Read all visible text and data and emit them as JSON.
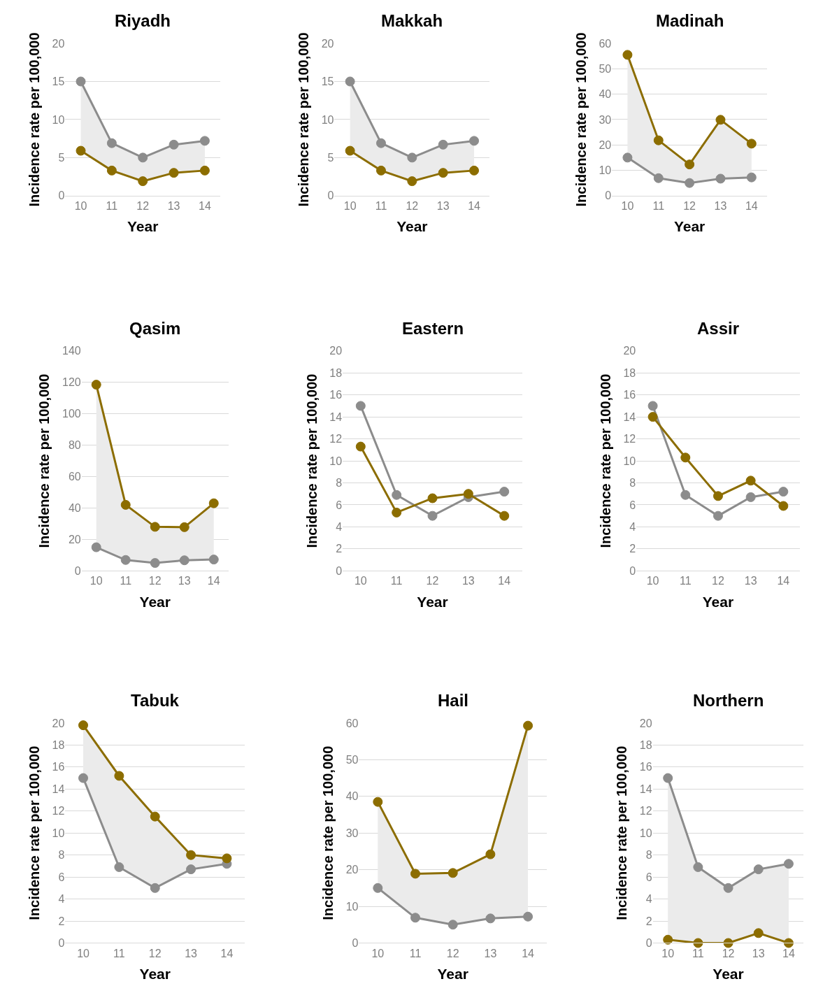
{
  "chart_data": [
    {
      "type": "line",
      "title": "Riyadh",
      "xlabel": "Year",
      "ylabel": "Incidence rate per 100,000",
      "categories": [
        "10",
        "11",
        "12",
        "13",
        "14"
      ],
      "ylim": [
        0,
        20
      ],
      "yticks": [
        0,
        5,
        10,
        15,
        20
      ],
      "grid": "y",
      "marker": "circle",
      "series": [
        {
          "color": "#8c8c8c",
          "values": [
            15,
            6.9,
            5.0,
            6.7,
            7.2
          ]
        },
        {
          "color": "#8c6d00",
          "values": [
            5.9,
            3.3,
            1.9,
            3.0,
            3.3
          ],
          "lower": [
            5.9,
            3.3,
            1.9,
            3.0,
            3.3
          ],
          "upper": [
            15,
            6.9,
            5.0,
            6.7,
            7.2
          ]
        }
      ]
    },
    {
      "type": "line",
      "title": "Makkah",
      "xlabel": "Year",
      "ylabel": "Incidence rate per 100,000",
      "categories": [
        "10",
        "11",
        "12",
        "13",
        "14"
      ],
      "ylim": [
        0,
        20
      ],
      "yticks": [
        0,
        5,
        10,
        15,
        20
      ],
      "grid": "y",
      "marker": "circle",
      "series": [
        {
          "color": "#8c8c8c",
          "values": [
            15,
            6.9,
            5.0,
            6.7,
            7.2
          ]
        },
        {
          "color": "#8c6d00",
          "values": [
            5.9,
            3.3,
            1.9,
            3.0,
            3.3
          ],
          "lower": [
            5.9,
            3.3,
            1.9,
            3.0,
            3.3
          ],
          "upper": [
            15,
            6.9,
            5.0,
            6.7,
            7.2
          ]
        }
      ]
    },
    {
      "type": "line",
      "title": "Madinah",
      "xlabel": "Year",
      "ylabel": "Incidence rate per 100,000",
      "categories": [
        "10",
        "11",
        "12",
        "13",
        "14"
      ],
      "ylim": [
        0,
        60
      ],
      "yticks": [
        0,
        10,
        20,
        30,
        40,
        50,
        60
      ],
      "grid": "y",
      "marker": "circle",
      "series": [
        {
          "color": "#8c8c8c",
          "values": [
            15,
            6.9,
            5.0,
            6.7,
            7.2
          ]
        },
        {
          "color": "#8c6d00",
          "values": [
            55.5,
            21.8,
            12.3,
            29.9,
            20.5
          ],
          "lower": [
            15,
            6.9,
            5.0,
            6.7,
            7.2
          ],
          "upper": [
            55.5,
            21.8,
            12.3,
            29.9,
            20.5
          ]
        }
      ]
    },
    {
      "type": "line",
      "title": "Qasim",
      "xlabel": "Year",
      "ylabel": "Incidence rate per 100,000",
      "categories": [
        "10",
        "11",
        "12",
        "13",
        "14"
      ],
      "ylim": [
        0,
        140
      ],
      "yticks": [
        0,
        20,
        40,
        60,
        80,
        100,
        120,
        140
      ],
      "grid": "y",
      "marker": "circle",
      "series": [
        {
          "color": "#8c8c8c",
          "values": [
            15,
            6.9,
            5.0,
            6.7,
            7.2
          ]
        },
        {
          "color": "#8c6d00",
          "values": [
            118.5,
            42,
            28,
            27.8,
            43
          ],
          "lower": [
            15,
            6.9,
            5.0,
            6.7,
            7.2
          ],
          "upper": [
            118.5,
            42,
            28,
            27.8,
            43
          ]
        }
      ]
    },
    {
      "type": "line",
      "title": "Eastern",
      "xlabel": "Year",
      "ylabel": "Incidence rate per 100,000",
      "categories": [
        "10",
        "11",
        "12",
        "13",
        "14"
      ],
      "ylim": [
        0,
        20
      ],
      "yticks": [
        0,
        2,
        4,
        6,
        8,
        10,
        12,
        14,
        16,
        18,
        20
      ],
      "grid": "y",
      "marker": "circle",
      "series": [
        {
          "color": "#8c8c8c",
          "values": [
            15,
            6.9,
            5.0,
            6.7,
            7.2
          ]
        },
        {
          "color": "#8c6d00",
          "values": [
            11.3,
            5.3,
            6.6,
            7.0,
            5.0
          ]
        }
      ]
    },
    {
      "type": "line",
      "title": "Assir",
      "xlabel": "Year",
      "ylabel": "Incidence rate per 100,000",
      "categories": [
        "10",
        "11",
        "12",
        "13",
        "14"
      ],
      "ylim": [
        0,
        20
      ],
      "yticks": [
        0,
        2,
        4,
        6,
        8,
        10,
        12,
        14,
        16,
        18,
        20
      ],
      "grid": "y",
      "marker": "circle",
      "series": [
        {
          "color": "#8c8c8c",
          "values": [
            15,
            6.9,
            5.0,
            6.7,
            7.2
          ]
        },
        {
          "color": "#8c6d00",
          "values": [
            14,
            10.3,
            6.8,
            8.2,
            5.9
          ]
        }
      ]
    },
    {
      "type": "line",
      "title": "Tabuk",
      "xlabel": "Year",
      "ylabel": "Incidence rate per 100,000",
      "categories": [
        "10",
        "11",
        "12",
        "13",
        "14"
      ],
      "ylim": [
        0,
        20
      ],
      "yticks": [
        0,
        2,
        4,
        6,
        8,
        10,
        12,
        14,
        16,
        18,
        20
      ],
      "grid": "y",
      "marker": "circle",
      "series": [
        {
          "color": "#8c8c8c",
          "values": [
            15,
            6.9,
            5.0,
            6.7,
            7.2
          ]
        },
        {
          "color": "#8c6d00",
          "values": [
            19.8,
            15.2,
            11.5,
            8.0,
            7.7
          ],
          "lower": [
            15,
            6.9,
            5.0,
            6.7,
            7.2
          ],
          "upper": [
            19.8,
            15.2,
            11.5,
            8.0,
            7.7
          ]
        }
      ]
    },
    {
      "type": "line",
      "title": "Hail",
      "xlabel": "Year",
      "ylabel": "Incidence rate per 100,000",
      "categories": [
        "10",
        "11",
        "12",
        "13",
        "14"
      ],
      "ylim": [
        0,
        60
      ],
      "yticks": [
        0,
        10,
        20,
        30,
        40,
        50,
        60
      ],
      "grid": "y",
      "marker": "circle",
      "series": [
        {
          "color": "#8c8c8c",
          "values": [
            15,
            6.9,
            5.0,
            6.7,
            7.2
          ]
        },
        {
          "color": "#8c6d00",
          "values": [
            38.5,
            18.9,
            19.1,
            24.2,
            59.3
          ],
          "lower": [
            15,
            6.9,
            5.0,
            6.7,
            7.2
          ],
          "upper": [
            38.5,
            18.9,
            19.1,
            24.2,
            59.3
          ]
        }
      ]
    },
    {
      "type": "line",
      "title": "Northern",
      "xlabel": "Year",
      "ylabel": "Incidence rate per 100,000",
      "categories": [
        "10",
        "11",
        "12",
        "13",
        "14"
      ],
      "ylim": [
        0,
        20
      ],
      "yticks": [
        0,
        2,
        4,
        6,
        8,
        10,
        12,
        14,
        16,
        18,
        20
      ],
      "grid": "y",
      "marker": "circle",
      "series": [
        {
          "color": "#8c8c8c",
          "values": [
            15,
            6.9,
            5.0,
            6.7,
            7.2
          ]
        },
        {
          "color": "#8c6d00",
          "values": [
            0.3,
            0,
            0,
            0.9,
            0
          ],
          "lower": [
            0.3,
            0,
            0,
            0.9,
            0
          ],
          "upper": [
            15,
            6.9,
            5.0,
            6.7,
            7.2
          ]
        }
      ]
    }
  ]
}
